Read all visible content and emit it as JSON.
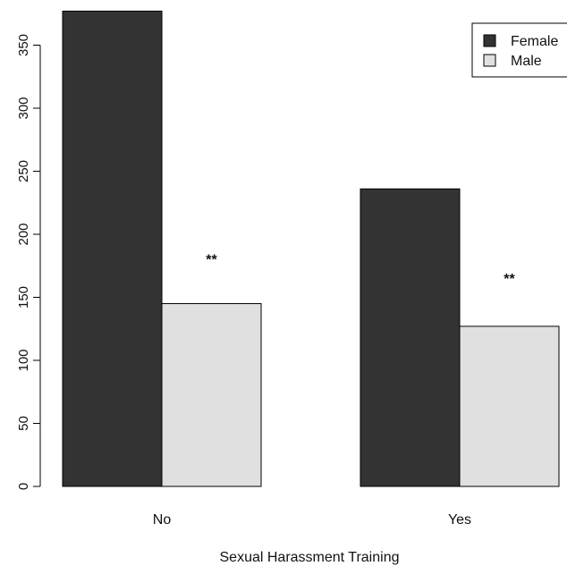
{
  "chart_data": {
    "type": "bar",
    "xlabel": "Sexual Harassment Training",
    "ylabel": "",
    "categories": [
      "No",
      "Yes"
    ],
    "series": [
      {
        "name": "Female",
        "values": [
          377,
          236
        ],
        "color": "#333333"
      },
      {
        "name": "Male",
        "values": [
          145,
          127
        ],
        "color": "#e0e0e0"
      }
    ],
    "ylim": [
      0,
      377
    ],
    "yticks": [
      0,
      50,
      100,
      150,
      200,
      250,
      300,
      350
    ],
    "annotations": [
      "**",
      "**"
    ],
    "legend": "top-right",
    "grid": false
  }
}
